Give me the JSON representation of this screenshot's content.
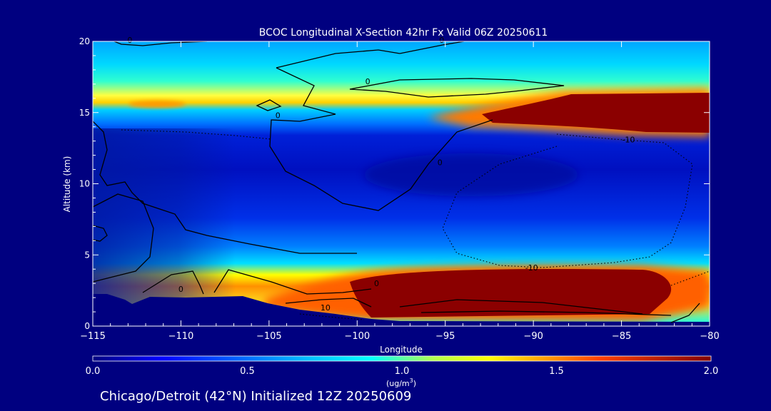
{
  "chart_data": {
    "type": "heatmap",
    "title": "BCOC Longitudinal X-Section 42hr  Fx Valid 06Z 20250611",
    "xlabel": "Longitude",
    "ylabel": "Altitude (km)",
    "xlim": [
      -115,
      -80
    ],
    "ylim": [
      0,
      20
    ],
    "x_ticks": [
      -115,
      -110,
      -105,
      -100,
      -95,
      -90,
      -85,
      -80
    ],
    "x_tick_labels": [
      "−115",
      "−110",
      "−105",
      "−100",
      "−95",
      "−90",
      "−85",
      "−80"
    ],
    "y_ticks": [
      0,
      5,
      10,
      15,
      20
    ],
    "y_tick_labels": [
      "0",
      "5",
      "10",
      "15",
      "20"
    ],
    "colorbar": {
      "min": 0.0,
      "max": 2.0,
      "tick_values": [
        0.0,
        0.5,
        1.0,
        1.5,
        2.0
      ],
      "tick_labels": [
        "0.0",
        "0.5",
        "1.0",
        "1.5",
        "2.0"
      ],
      "units_prefix": "(ug/m",
      "units_exp": "3",
      "units_suffix": ")",
      "colormap": "jet"
    },
    "contour_labels": [
      {
        "text": "0",
        "lon": -112.9,
        "alt": 19.9
      },
      {
        "text": "0",
        "lon": -95.2,
        "alt": 19.9
      },
      {
        "text": "0",
        "lon": -99.4,
        "alt": 17.0
      },
      {
        "text": "0",
        "lon": -104.5,
        "alt": 14.6
      },
      {
        "text": "0",
        "lon": -95.3,
        "alt": 11.3
      },
      {
        "text": "-10",
        "lon": -84.6,
        "alt": 12.9
      },
      {
        "text": "-10",
        "lon": -90.1,
        "alt": 3.9
      },
      {
        "text": "0",
        "lon": -110.0,
        "alt": 2.4
      },
      {
        "text": "0",
        "lon": -98.9,
        "alt": 2.8
      },
      {
        "text": "10",
        "lon": -101.8,
        "alt": 1.1
      }
    ],
    "concentration_features": [
      {
        "label": "upper layer max",
        "lon_range": [
          -88,
          -80
        ],
        "alt": 15.0,
        "value": 2.0
      },
      {
        "label": "lower layer max",
        "lon_range": [
          -99,
          -81
        ],
        "alt": 2.5,
        "value": 2.0
      }
    ]
  },
  "footer": {
    "caption": "Chicago/Detroit (42°N) Initialized 12Z 20250609"
  }
}
